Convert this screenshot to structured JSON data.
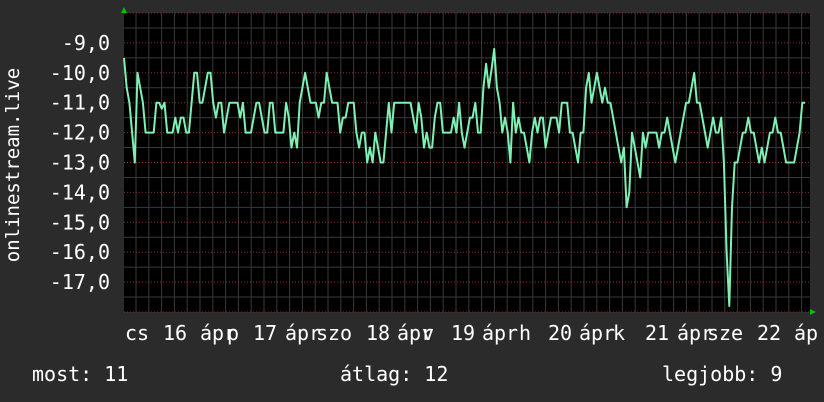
{
  "chart_data": {
    "type": "line",
    "ylabel": "onlinestream.live",
    "ylim": [
      -18.0,
      -8.0
    ],
    "y_ticks": [
      -9.0,
      -10.0,
      -11.0,
      -12.0,
      -13.0,
      -14.0,
      -15.0,
      -16.0,
      -17.0
    ],
    "y_tick_labels": [
      "-9,0",
      "-10,0",
      "-11,0",
      "-12,0",
      "-13,0",
      "-14,0",
      "-15,0",
      "-16,0",
      "-17,0"
    ],
    "x_tick_labels": [
      "cs",
      "16",
      "ápr",
      "p",
      "17",
      "ápr",
      "szo",
      "18",
      "ápr",
      "v",
      "19",
      "ápr",
      "h",
      "20",
      "ápr",
      "k",
      "21",
      "ápr",
      "sze",
      "22",
      "áp"
    ],
    "grid": true,
    "colors": {
      "background": "#2b2b2b",
      "plot": "#000000",
      "line": "#7ff0b4",
      "grid": "#3a3a3a",
      "grid_dot": "#8a2a2a",
      "arrow": "#00c000"
    },
    "series": [
      {
        "values": [
          -9.5,
          -10.5,
          -11,
          -12,
          -13,
          -10,
          -10.5,
          -11,
          -12,
          -12,
          -12,
          -12,
          -11,
          -11,
          -11.2,
          -11,
          -12,
          -12,
          -12,
          -11.5,
          -12,
          -11.5,
          -11.5,
          -12,
          -12,
          -11,
          -10,
          -10,
          -11,
          -11,
          -10.5,
          -10,
          -10,
          -11,
          -11.5,
          -11,
          -11,
          -12,
          -11.5,
          -11,
          -11,
          -11,
          -11,
          -11.5,
          -11,
          -12,
          -12,
          -12,
          -11.5,
          -11,
          -11,
          -11.5,
          -12,
          -12,
          -11,
          -11,
          -12,
          -12,
          -12,
          -12,
          -11,
          -11.5,
          -12.5,
          -12,
          -12.5,
          -11,
          -10.5,
          -10,
          -10.5,
          -11,
          -11,
          -11,
          -11.5,
          -11,
          -11,
          -10,
          -10.5,
          -11,
          -11,
          -11,
          -12,
          -11.5,
          -11.5,
          -11,
          -11,
          -11,
          -12,
          -12.5,
          -12,
          -12,
          -13,
          -12.5,
          -13,
          -12,
          -12.5,
          -13,
          -13,
          -12,
          -11,
          -12,
          -11,
          -11,
          -11,
          -11,
          -11,
          -11,
          -11,
          -11.5,
          -12,
          -11,
          -11.5,
          -12.5,
          -12,
          -12.5,
          -12.5,
          -11.5,
          -11,
          -11,
          -12,
          -12,
          -12,
          -12,
          -11.5,
          -12,
          -11,
          -12,
          -12.5,
          -12,
          -11.5,
          -11.5,
          -11,
          -12,
          -12,
          -10.5,
          -9.7,
          -10.5,
          -9.9,
          -9.2,
          -10.5,
          -11,
          -12,
          -11.5,
          -12,
          -13,
          -11,
          -12,
          -11.5,
          -12,
          -12,
          -12.5,
          -13,
          -12,
          -11.5,
          -12,
          -11.5,
          -11.5,
          -12.5,
          -12,
          -11.5,
          -11.5,
          -11.5,
          -12,
          -11,
          -11,
          -11,
          -12,
          -12,
          -12.5,
          -13,
          -12,
          -12,
          -10.5,
          -10,
          -11,
          -10.5,
          -10,
          -10.5,
          -11,
          -10.5,
          -11,
          -11,
          -11.5,
          -12,
          -12.5,
          -13,
          -12.5,
          -14.5,
          -14,
          -12,
          -12.5,
          -13,
          -13.5,
          -12,
          -12.5,
          -12,
          -12,
          -12,
          -12,
          -12.5,
          -12,
          -12,
          -11.5,
          -12,
          -12.5,
          -13,
          -12.5,
          -12,
          -11.5,
          -11,
          -11,
          -10.5,
          -10,
          -11,
          -11,
          -11.5,
          -12,
          -12.5,
          -12,
          -11.5,
          -12,
          -12,
          -11.5,
          -13,
          -16,
          -17.8,
          -14.5,
          -13,
          -13,
          -12.5,
          -12,
          -12,
          -11.5,
          -12,
          -12,
          -12.5,
          -13,
          -12.5,
          -13,
          -12.5,
          -12,
          -12,
          -11.5,
          -12,
          -12,
          -12.5,
          -13,
          -13,
          -13,
          -13,
          -12.5,
          -12,
          -11,
          -11
        ]
      }
    ]
  },
  "stats": {
    "current": "most: 11",
    "average": "átlag: 12",
    "best": "legjobb: 9"
  }
}
